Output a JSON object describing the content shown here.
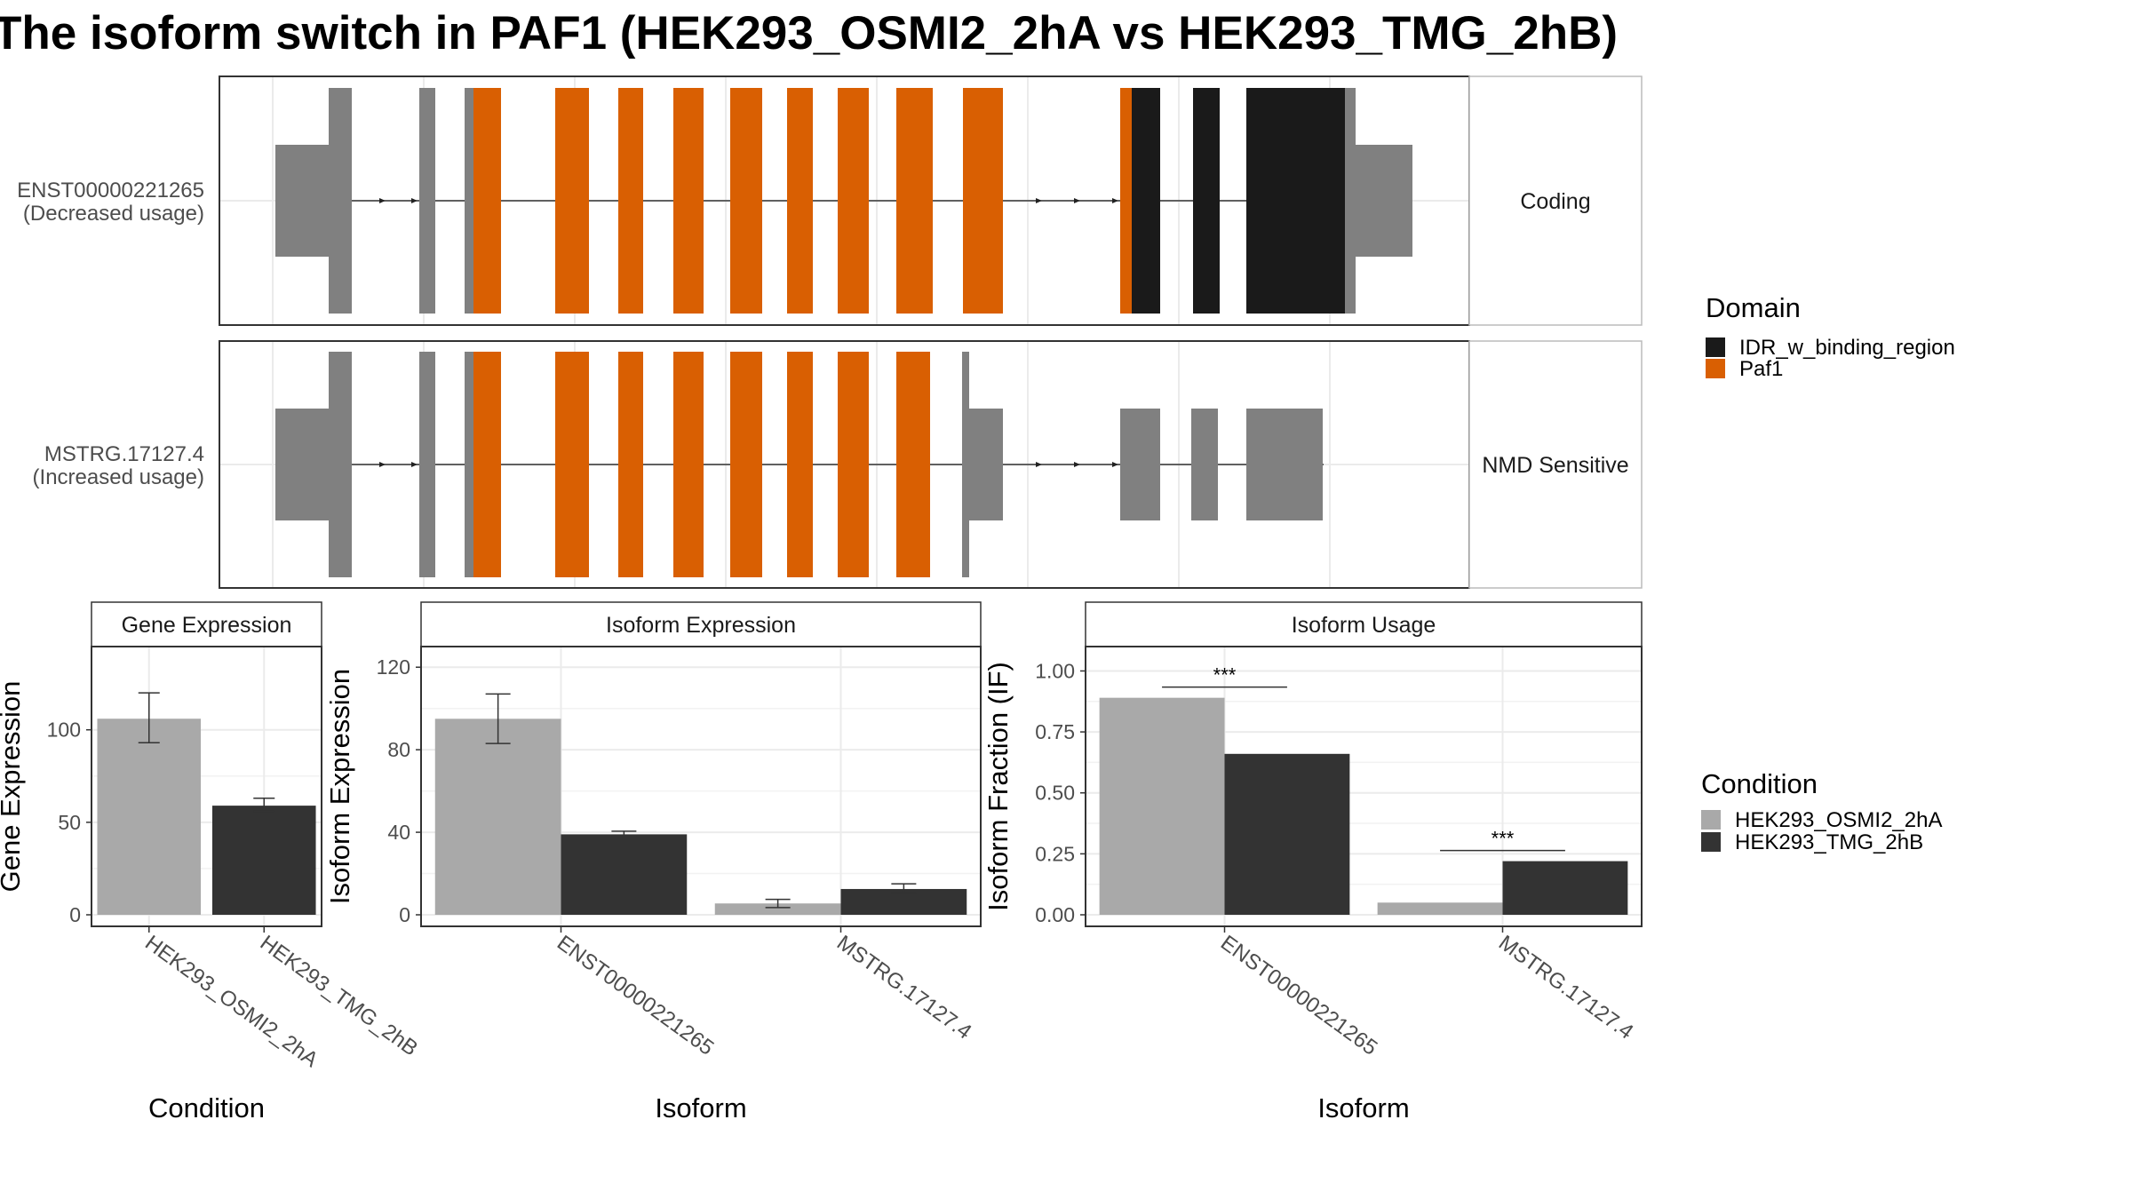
{
  "title": "The isoform switch in PAF1 (HEK293_OSMI2_2hA vs HEK293_TMG_2hB)",
  "colors": {
    "cond_a": "#A9A9A9",
    "cond_b": "#333333",
    "idr": "#1a1a1a",
    "paf1": "#D95F02",
    "exon": "#808080",
    "grid": "#ebebeb",
    "strip_bg": "#ffffff"
  },
  "structure": {
    "isoforms": [
      {
        "id": "ENST00000221265",
        "usage": "(Decreased usage)",
        "category": "Coding"
      },
      {
        "id": "MSTRG.17127.4",
        "usage": "(Increased usage)",
        "category": "NMD Sensitive"
      }
    ],
    "domain_legend": {
      "title": "Domain",
      "items": [
        {
          "label": "IDR_w_binding_region",
          "color": "#1a1a1a"
        },
        {
          "label": "Paf1",
          "color": "#D95F02"
        }
      ]
    }
  },
  "condition_legend": {
    "title": "Condition",
    "items": [
      {
        "label": "HEK293_OSMI2_2hA",
        "color": "#A9A9A9"
      },
      {
        "label": "HEK293_TMG_2hB",
        "color": "#333333"
      }
    ]
  },
  "chart_data": [
    {
      "type": "bar",
      "strip": "Gene Expression",
      "xlabel": "Condition",
      "ylabel": "Gene Expression",
      "categories": [
        "HEK293_OSMI2_2hA",
        "HEK293_TMG_2hB"
      ],
      "values": [
        106,
        59
      ],
      "errors": [
        [
          93,
          120
        ],
        [
          56,
          63
        ]
      ],
      "ylim": [
        0,
        145
      ],
      "yticks": [
        "0",
        "50",
        "100"
      ],
      "ytick_values": [
        0,
        50,
        100
      ]
    },
    {
      "type": "bar",
      "strip": "Isoform Expression",
      "xlabel": "Isoform",
      "ylabel": "Isoform Expression",
      "categories": [
        "ENST00000221265",
        "MSTRG.17127.4"
      ],
      "series": [
        {
          "name": "HEK293_OSMI2_2hA",
          "values": [
            95,
            5.5
          ]
        },
        {
          "name": "HEK293_TMG_2hB",
          "values": [
            39,
            12.5
          ]
        }
      ],
      "errors": [
        [
          [
            83,
            107
          ],
          [
            3.5,
            7.5
          ]
        ],
        [
          [
            38,
            40.5
          ],
          [
            10.5,
            15
          ]
        ]
      ],
      "ylim": [
        0,
        130
      ],
      "yticks": [
        "0",
        "40",
        "80",
        "120"
      ],
      "ytick_values": [
        0,
        40,
        80,
        120
      ]
    },
    {
      "type": "bar",
      "strip": "Isoform Usage",
      "xlabel": "Isoform",
      "ylabel": "Isoform Fraction (IF)",
      "categories": [
        "ENST00000221265",
        "MSTRG.17127.4"
      ],
      "series": [
        {
          "name": "HEK293_OSMI2_2hA",
          "values": [
            0.89,
            0.05
          ]
        },
        {
          "name": "HEK293_TMG_2hB",
          "values": [
            0.66,
            0.22
          ]
        }
      ],
      "significance": [
        "***",
        "***"
      ],
      "ylim": [
        0,
        1.1
      ],
      "yticks": [
        "0.00",
        "0.25",
        "0.50",
        "0.75",
        "1.00"
      ],
      "ytick_values": [
        0,
        0.25,
        0.5,
        0.75,
        1.0
      ]
    }
  ]
}
